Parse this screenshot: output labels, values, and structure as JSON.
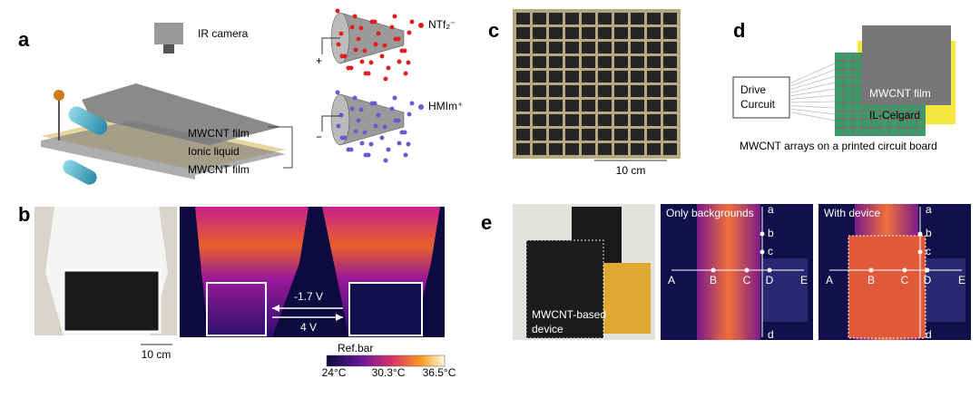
{
  "panels": {
    "a": {
      "label": "a",
      "ir_camera": "IR camera",
      "anion": "NTf₂⁻",
      "cation": "HMIm⁺",
      "plus": "+",
      "minus": "−",
      "layers": [
        "MWCNT film",
        "Ionic liquid",
        "MWCNT film"
      ]
    },
    "b": {
      "label": "b",
      "scale": "10 cm",
      "arrow_left": "-1.7 V",
      "arrow_right": "4 V",
      "colorbar": {
        "title": "Ref.bar",
        "ticks": [
          "24°C",
          "30.3°C",
          "36.5°C"
        ]
      }
    },
    "c": {
      "label": "c",
      "scale": "10 cm"
    },
    "d": {
      "label": "d",
      "drive_circuit": [
        "Drive",
        "Curcuit"
      ],
      "film": "MWCNT film",
      "separator": "IL-Celgard",
      "caption": "MWCNT arrays on a printed circuit board"
    },
    "e": {
      "label": "e",
      "device": [
        "MWCNT-based",
        "device"
      ],
      "left_title": "Only backgrounds",
      "right_title": "With device",
      "points": [
        "A",
        "B",
        "C",
        "D",
        "E"
      ],
      "vertical_points": [
        "a",
        "b",
        "c",
        "d"
      ]
    }
  }
}
